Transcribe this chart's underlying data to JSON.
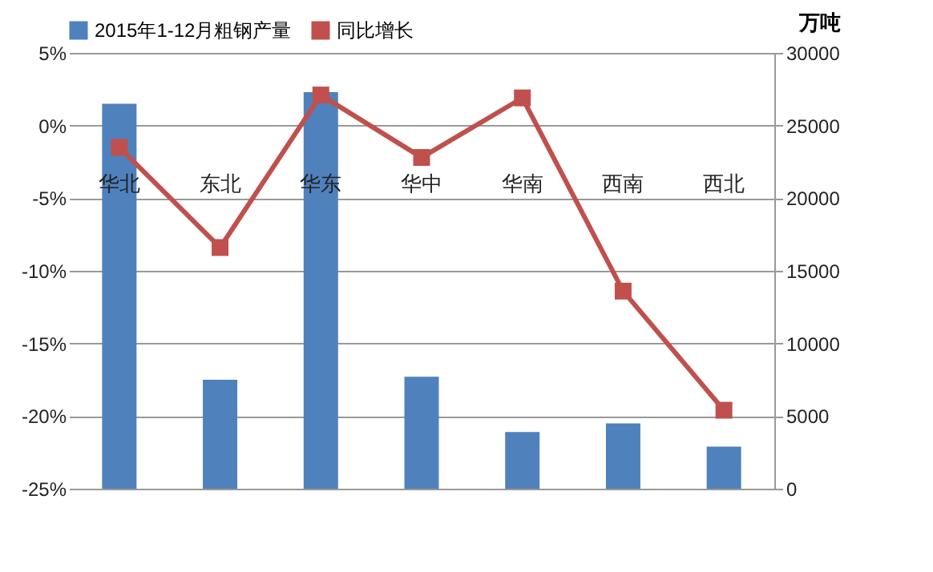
{
  "chart_data": {
    "type": "bar",
    "categories": [
      "华北",
      "东北",
      "华东",
      "华中",
      "华南",
      "西南",
      "西北"
    ],
    "series": [
      {
        "name": "2015年1-12月粗钢产量",
        "axis": "y2",
        "color": "#4f81bd",
        "values": [
          26500,
          7500,
          27300,
          7700,
          3900,
          4500,
          2900
        ]
      },
      {
        "name": "同比增长",
        "type": "line",
        "color": "#c0504d",
        "marker": "square",
        "values": [
          -1.5,
          -8.4,
          2.1,
          -2.2,
          1.9,
          -11.4,
          -19.6
        ]
      }
    ],
    "y2label": "万吨",
    "ylim": [
      -25,
      5
    ],
    "yticks": [
      {
        "value": -25,
        "label": "-25%"
      },
      {
        "value": -20,
        "label": "-20%"
      },
      {
        "value": -15,
        "label": "-15%"
      },
      {
        "value": -10,
        "label": "-10%"
      },
      {
        "value": -5,
        "label": "-5%"
      },
      {
        "value": 0,
        "label": "0%"
      },
      {
        "value": 5,
        "label": "5%"
      }
    ],
    "y2lim": [
      0,
      30000
    ],
    "y2ticks": [
      0,
      5000,
      10000,
      15000,
      20000,
      25000,
      30000
    ],
    "grid": "y",
    "legend": "top"
  }
}
